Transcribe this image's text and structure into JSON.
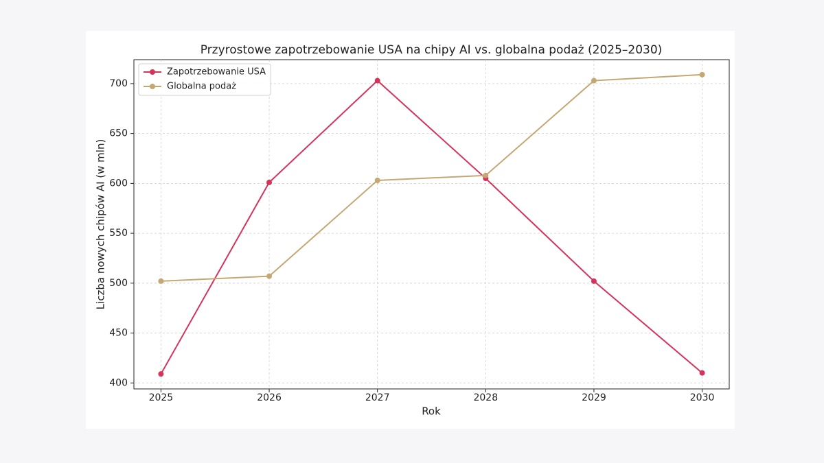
{
  "chart_data": {
    "type": "line",
    "title": "Przyrostowe zapotrzebowanie USA na chipy AI vs. globalna podaż (2025–2030)",
    "xlabel": "Rok",
    "ylabel": "Liczba nowych chipów AI (w mln)",
    "x": [
      2025,
      2026,
      2027,
      2028,
      2029,
      2030
    ],
    "series": [
      {
        "name": "Zapotrzebowanie USA",
        "color": "#d6335a",
        "values": [
          409,
          601,
          703,
          605,
          502,
          410
        ]
      },
      {
        "name": "Globalna podaż",
        "color": "#c4a772",
        "values": [
          502,
          507,
          603,
          608,
          703,
          709
        ]
      }
    ],
    "xlim": [
      2024.75,
      2030.25
    ],
    "xticks": [
      2025,
      2026,
      2027,
      2028,
      2029,
      2030
    ],
    "ylim": [
      394,
      724
    ],
    "yticks": [
      400,
      450,
      500,
      550,
      600,
      650,
      700
    ],
    "grid": true,
    "legend": "upper left"
  }
}
